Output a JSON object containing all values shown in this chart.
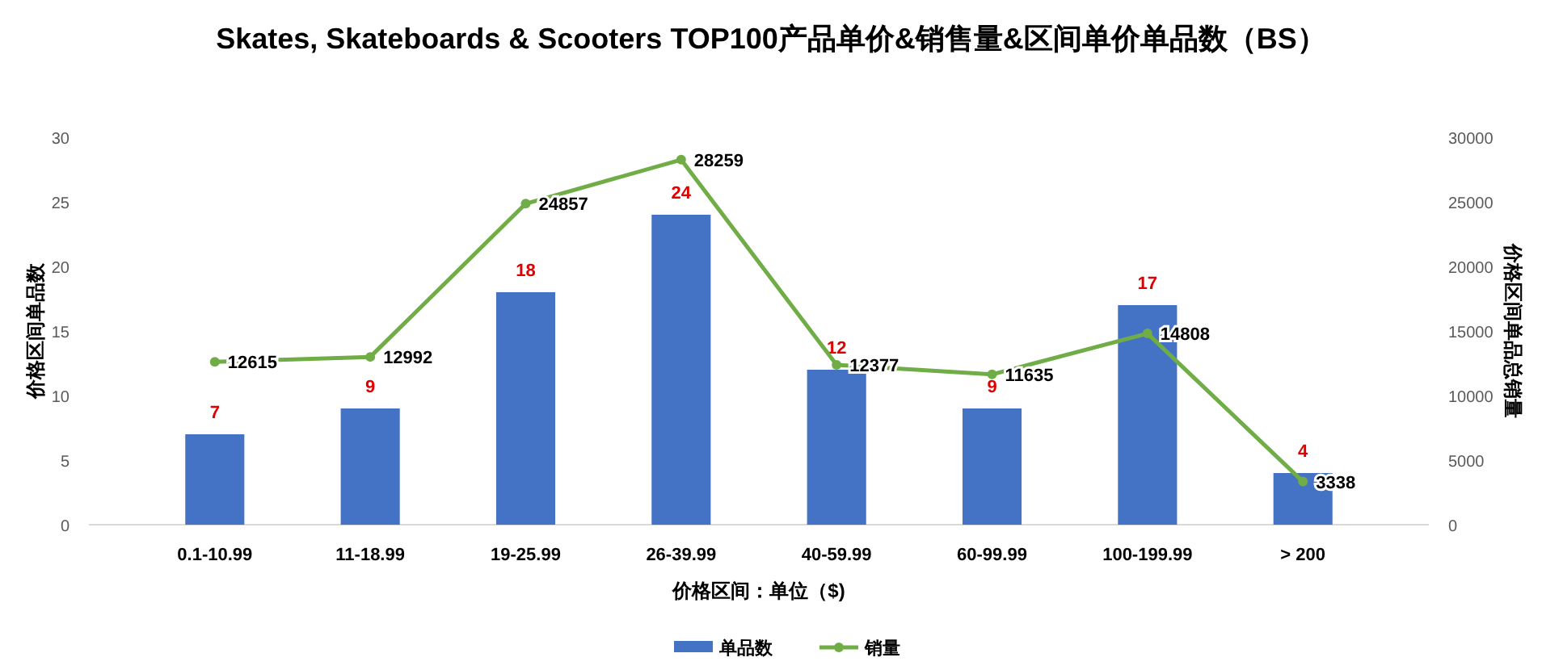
{
  "chart_data": {
    "type": "bar",
    "title": "Skates, Skateboards & Scooters TOP100产品单价&销售量&区间单价单品数（BS）",
    "xlabel": "价格区间：单位（$)",
    "ylabel": "价格区间单品数",
    "y2label": "价格区间单品总销量",
    "categories": [
      "0.1-10.99",
      "11-18.99",
      "19-25.99",
      "26-39.99",
      "40-59.99",
      "60-99.99",
      "100-199.99",
      "> 200"
    ],
    "series": [
      {
        "name": "单品数",
        "color": "#4472c4",
        "values": [
          7,
          9,
          18,
          24,
          12,
          9,
          17,
          4
        ]
      },
      {
        "name": "销量",
        "type": "line",
        "axis": "y2",
        "color": "#70ad47",
        "marker": "circle",
        "values": [
          12615,
          12992,
          24857,
          28259,
          12377,
          11635,
          14808,
          3338
        ]
      }
    ],
    "ylim": [
      0,
      30
    ],
    "yticks": [
      0,
      5,
      10,
      15,
      20,
      25,
      30
    ],
    "y2lim": [
      0,
      30000
    ],
    "y2ticks": [
      0,
      5000,
      10000,
      15000,
      20000,
      25000,
      30000
    ],
    "data_labels": true,
    "grid": false,
    "legend": "bottom"
  }
}
